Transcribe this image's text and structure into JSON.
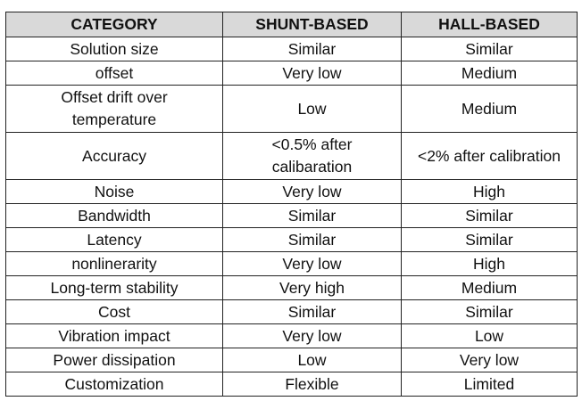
{
  "table": {
    "header": [
      "CATEGORY",
      "SHUNT-BASED",
      "HALL-BASED"
    ],
    "rows": [
      [
        "Solution size",
        "Similar",
        "Similar"
      ],
      [
        "offset",
        "Very low",
        "Medium"
      ],
      [
        "Offset drift over temperature",
        "Low",
        "Medium"
      ],
      [
        "Accuracy",
        "<0.5% after calibaration",
        "<2% after calibration"
      ],
      [
        "Noise",
        "Very low",
        "High"
      ],
      [
        "Bandwidth",
        "Similar",
        "Similar"
      ],
      [
        "Latency",
        "Similar",
        "Similar"
      ],
      [
        "nonlinerarity",
        "Very low",
        "High"
      ],
      [
        "Long-term stability",
        "Very high",
        "Medium"
      ],
      [
        "Cost",
        "Similar",
        "Similar"
      ],
      [
        "Vibration impact",
        "Very low",
        "Low"
      ],
      [
        "Power dissipation",
        "Low",
        "Very low"
      ],
      [
        "Customization",
        "Flexible",
        "Limited"
      ]
    ]
  }
}
